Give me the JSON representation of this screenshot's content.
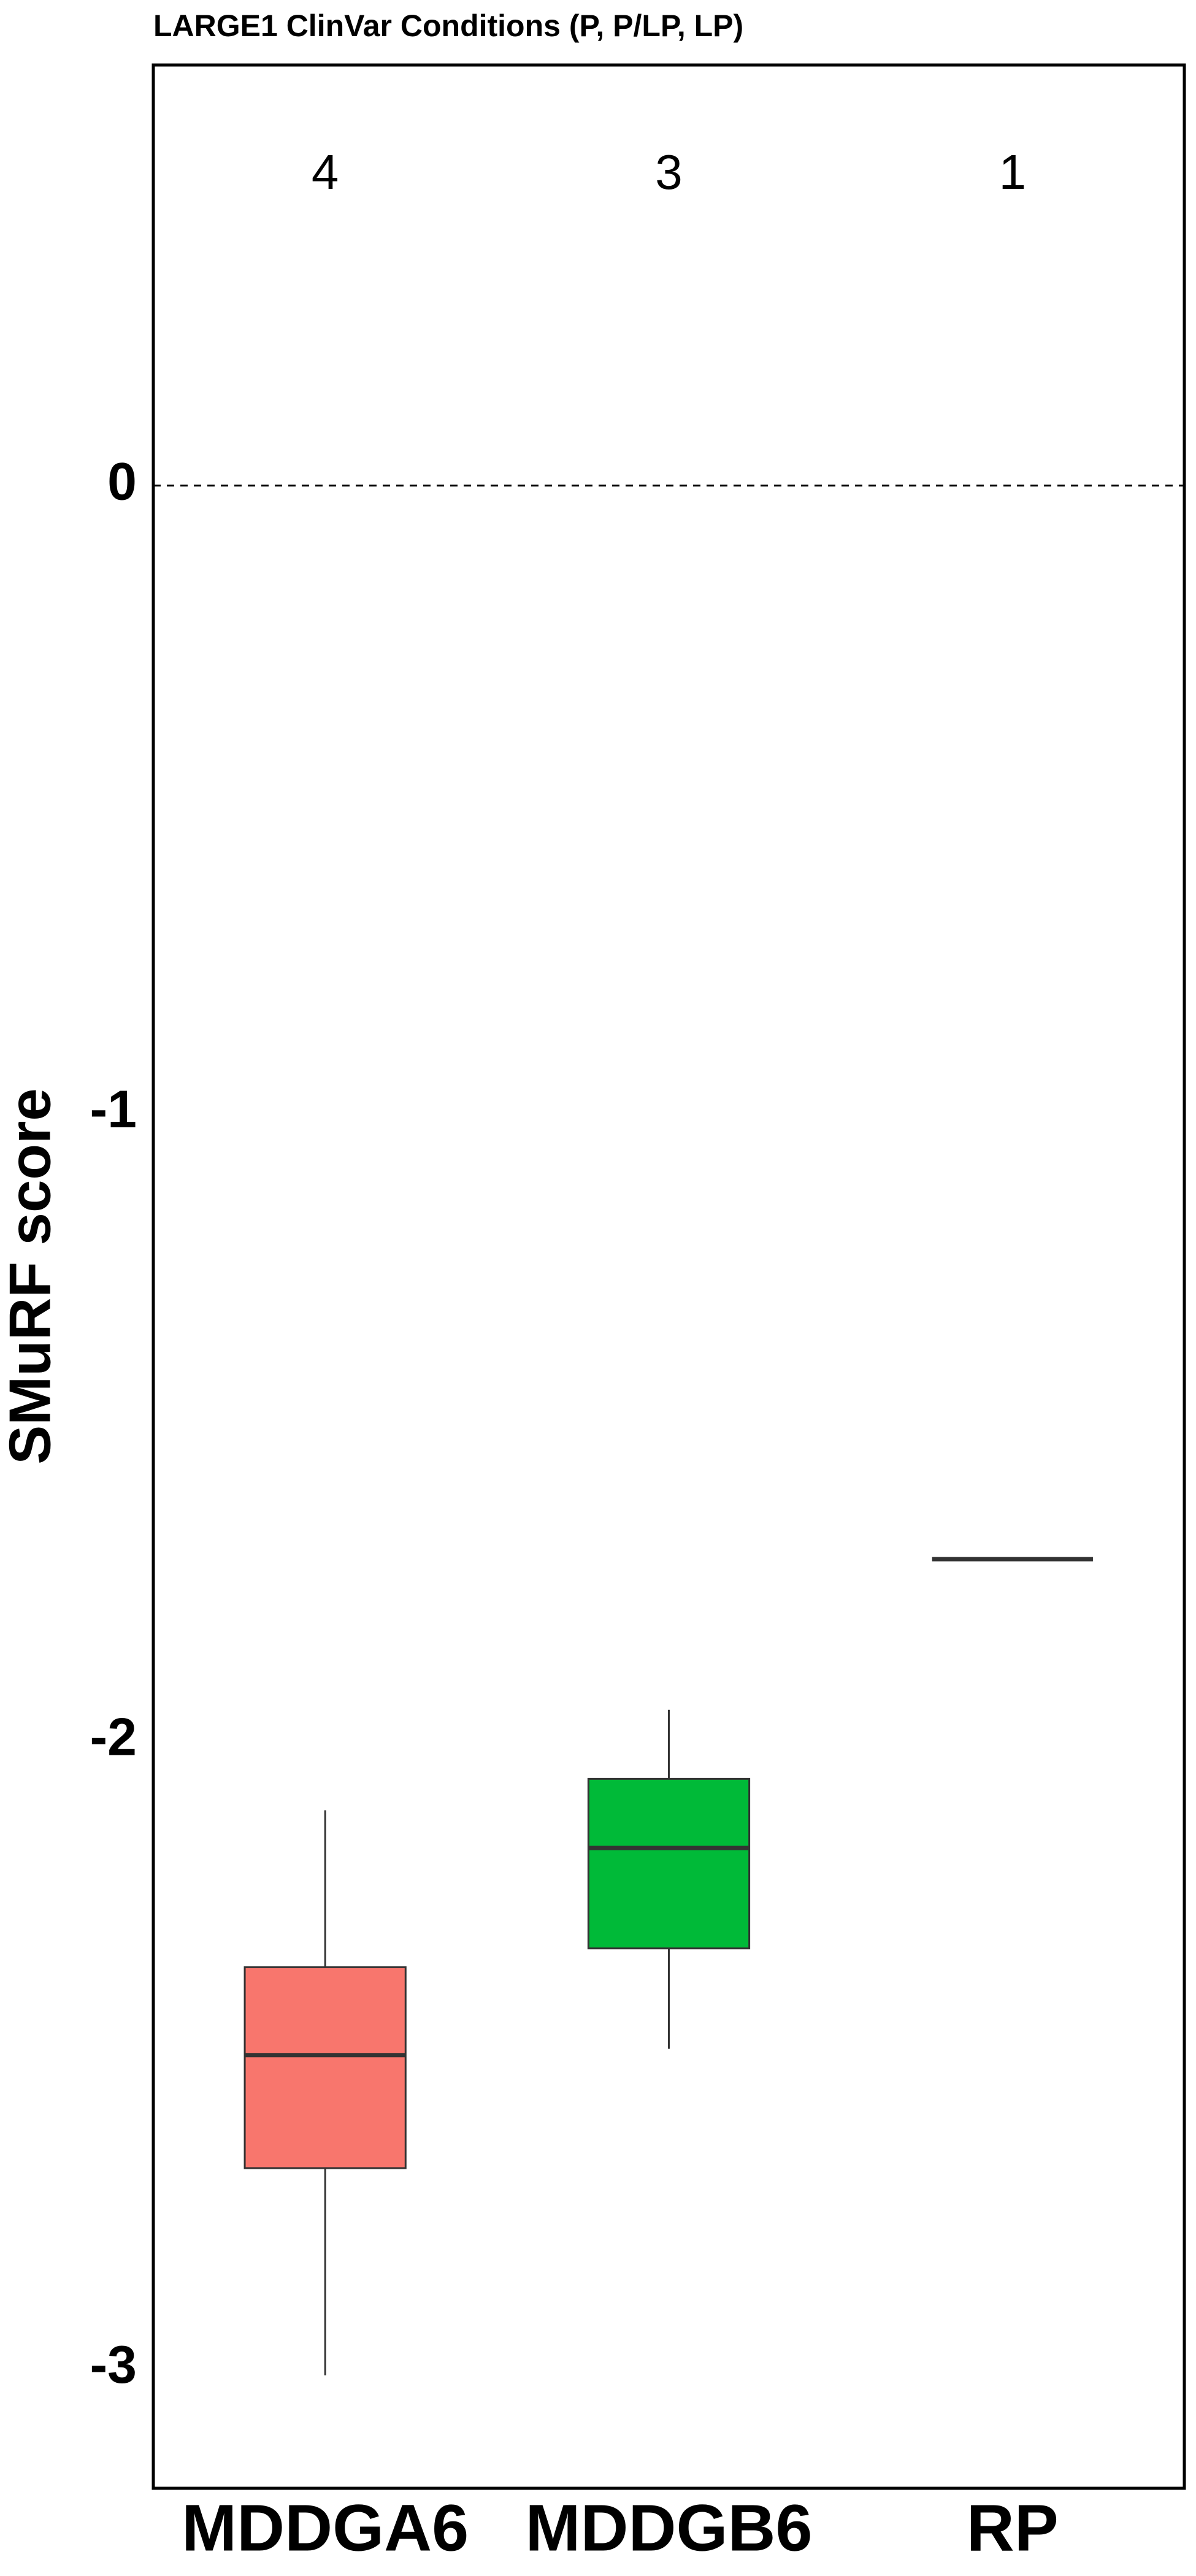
{
  "chart_data": {
    "type": "box",
    "title": "LARGE1 ClinVar Conditions (P, P/LP, LP)",
    "y_label": "SMuRF score",
    "categories": [
      "MDDGA6",
      "MDDGB6",
      "RP"
    ],
    "boxes": [
      {
        "name": "MDDGA6",
        "color": "#F8766D",
        "n": 4,
        "min": -3.01,
        "q1": -2.68,
        "median": -2.5,
        "q3": -2.36,
        "max": -2.11
      },
      {
        "name": "MDDGB6",
        "color": "#00BA38",
        "n": 3,
        "min": -2.49,
        "q1": -2.33,
        "median": -2.17,
        "q3": -2.06,
        "max": -1.95
      },
      {
        "name": "RP",
        "color": "#619CFF",
        "n": 1,
        "min": -1.71,
        "q1": -1.71,
        "median": -1.71,
        "q3": -1.71,
        "max": -1.71
      }
    ],
    "ylim": [
      -3.19,
      0.67
    ],
    "yticks": [
      0,
      -1,
      -2,
      -3
    ],
    "hline": 0,
    "grid": false
  }
}
